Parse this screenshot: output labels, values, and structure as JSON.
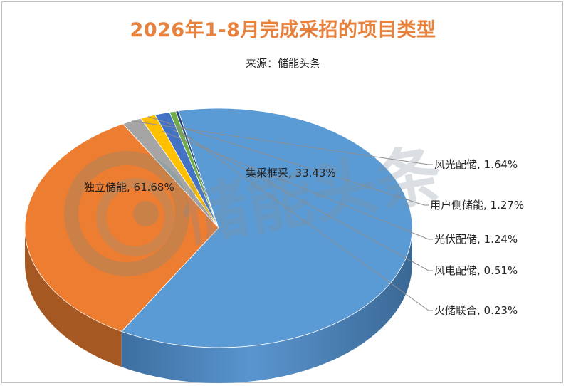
{
  "chart_data": {
    "type": "pie",
    "title": "2026年1-8月完成采招的项目类型",
    "subtitle": "来源：储能头条",
    "slices": [
      {
        "label": "独立储能",
        "value": 61.68,
        "display": "61.68%",
        "color": "#5b9bd5"
      },
      {
        "label": "集采框采",
        "value": 33.43,
        "display": "33.43%",
        "color": "#ed7d31"
      },
      {
        "label": "风光配储",
        "value": 1.64,
        "display": "1.64%",
        "color": "#a5a5a5"
      },
      {
        "label": "用户侧储能",
        "value": 1.27,
        "display": "1.27%",
        "color": "#ffc000"
      },
      {
        "label": "光伏配储",
        "value": 1.24,
        "display": "1.24%",
        "color": "#4472c4"
      },
      {
        "label": "风电配储",
        "value": 0.51,
        "display": "0.51%",
        "color": "#70ad47"
      },
      {
        "label": "火储联合",
        "value": 0.23,
        "display": "0.23%",
        "color": "#264478"
      }
    ]
  },
  "watermark": {
    "text": "储能头条"
  }
}
